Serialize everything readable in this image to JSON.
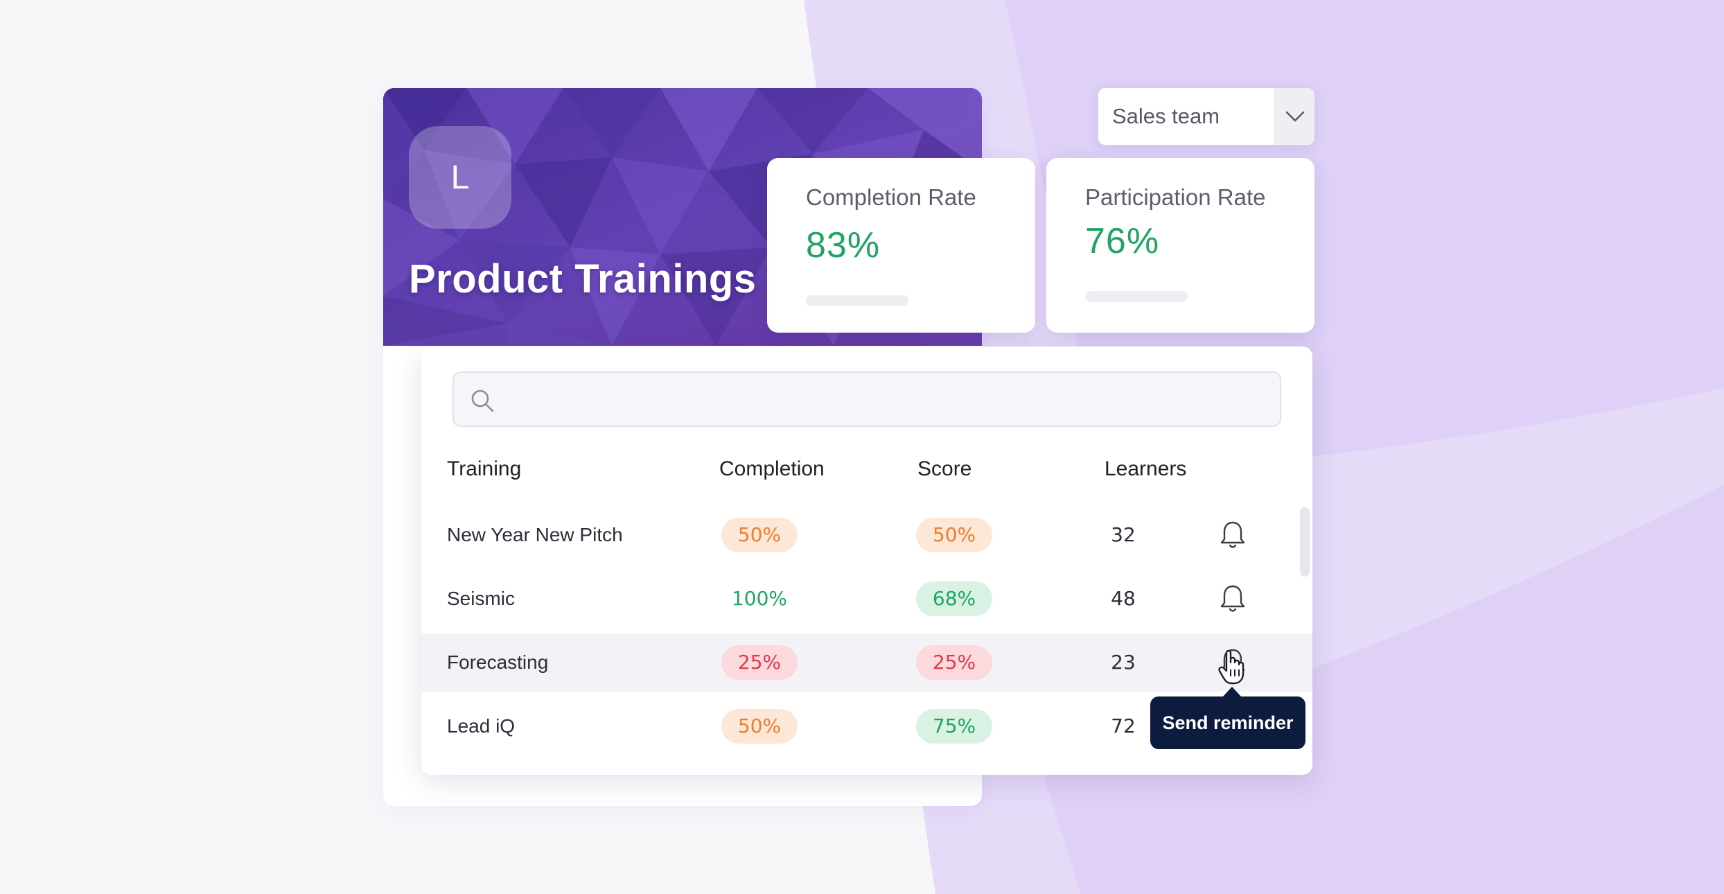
{
  "colors": {
    "banner_purple": "#5a3aa8",
    "background_lavender": "#e3d5f8",
    "success_green": "#1fa463",
    "warning_orange": "#ef7d2e",
    "danger_red": "#e23a4c",
    "tooltip_navy": "#0d1b3e"
  },
  "banner": {
    "logo_letter": "L",
    "title": "Product Trainings"
  },
  "team_filter": {
    "selected": "Sales team",
    "icon": "chevron-down-icon"
  },
  "stats": [
    {
      "label": "Completion Rate",
      "value": "83%"
    },
    {
      "label": "Participation Rate",
      "value": "76%"
    }
  ],
  "search": {
    "placeholder": "",
    "value": "",
    "icon": "search-icon"
  },
  "table": {
    "headers": {
      "training": "Training",
      "completion": "Completion",
      "score": "Score",
      "learners": "Learners"
    },
    "rows": [
      {
        "training": "New Year New Pitch",
        "completion": "50%",
        "completion_status": "orange",
        "score": "50%",
        "score_status": "orange",
        "learners": "32"
      },
      {
        "training": "Seismic",
        "completion": "100%",
        "completion_status": "plain",
        "score": "68%",
        "score_status": "green",
        "learners": "48"
      },
      {
        "training": "Forecasting",
        "completion": "25%",
        "completion_status": "red",
        "score": "25%",
        "score_status": "red",
        "learners": "23"
      },
      {
        "training": "Lead iQ",
        "completion": "50%",
        "completion_status": "orange",
        "score": "75%",
        "score_status": "green",
        "learners": "72"
      }
    ],
    "row_action_icon": "bell-icon",
    "hovered_row": 2
  },
  "tooltip": {
    "text": "Send reminder"
  }
}
